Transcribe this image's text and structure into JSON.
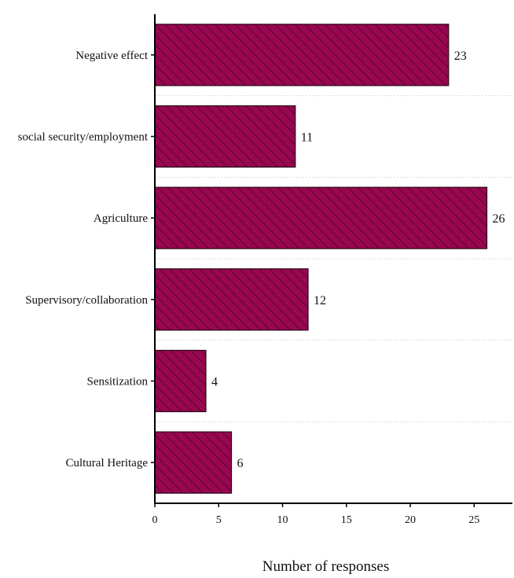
{
  "chart_data": {
    "type": "bar",
    "orientation": "horizontal",
    "categories": [
      "Negative effect",
      "social security/employment",
      "Agriculture",
      "Supervisory/collaboration",
      "Sensitization",
      "Cultural Heritage"
    ],
    "values": [
      23,
      11,
      26,
      12,
      4,
      6
    ],
    "xlabel": "Number of responses",
    "ylabel": "",
    "title": "",
    "xlim": [
      0,
      28
    ],
    "xticks": [
      0,
      5,
      10,
      15,
      20,
      25
    ],
    "grid": "dotted separators between bars",
    "bar_color": "#9a0650",
    "bar_edge_color": "#2a0a1a",
    "hatch_color": "#3a0a22",
    "bar_pattern": "diagonal hatch",
    "axis_color": "#000000"
  }
}
